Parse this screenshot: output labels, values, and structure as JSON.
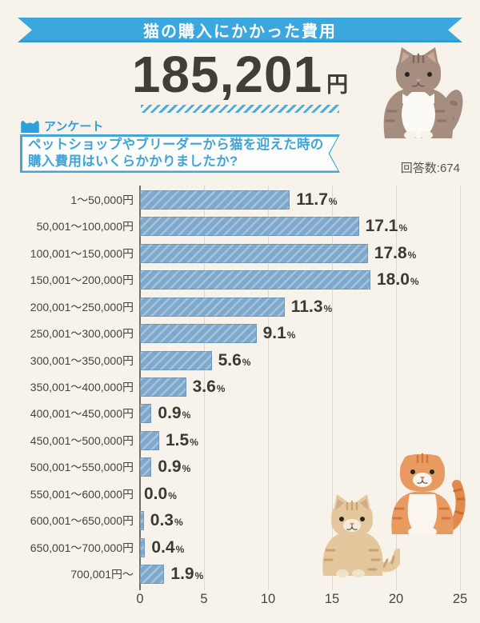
{
  "page": {
    "background": "#f8f3ea"
  },
  "header": {
    "title": "猫の購入にかかった費用",
    "ribbon_color": "#3aa7df"
  },
  "average": {
    "amount": "185,201",
    "unit": "円"
  },
  "survey": {
    "tag": "アンケート",
    "question_line1": "ペットショップやブリーダーから猫を迎えた時の",
    "question_line2": "購入費用はいくらかかりましたか?",
    "responses": "回答数:674"
  },
  "chart_data": {
    "type": "bar",
    "orientation": "horizontal",
    "title": "猫の購入にかかった費用",
    "unit": "%",
    "categories": [
      "1～50,000円",
      "50,001～100,000円",
      "100,001～150,000円",
      "150,001～200,000円",
      "200,001～250,000円",
      "250,001～300,000円",
      "300,001～350,000円",
      "350,001～400,000円",
      "400,001～450,000円",
      "450,001～500,000円",
      "500,001～550,000円",
      "550,001～600,000円",
      "600,001～650,000円",
      "650,001～700,000円",
      "700,001円～"
    ],
    "values": [
      11.7,
      17.1,
      17.8,
      18.0,
      11.3,
      9.1,
      5.6,
      3.6,
      0.9,
      1.5,
      0.9,
      0.0,
      0.3,
      0.4,
      1.9
    ],
    "value_labels": [
      "11.7",
      "17.1",
      "17.8",
      "18.0",
      "11.3",
      "9.1",
      "5.6",
      "3.6",
      "0.9",
      "1.5",
      "0.9",
      "0.0",
      "0.3",
      "0.4",
      "1.9"
    ],
    "x_ticks": [
      0,
      5,
      10,
      15,
      20,
      25
    ],
    "xlim": [
      0,
      25
    ],
    "grid": true,
    "legend": "none",
    "bar_color": "#7ea8cc",
    "bar_stripe_color": "#a6c3dc"
  },
  "decor": {
    "cats": [
      {
        "name": "longhair-brown-tabby-cat"
      },
      {
        "name": "tan-tabby-cat"
      },
      {
        "name": "orange-scottish-fold-cat"
      }
    ]
  }
}
